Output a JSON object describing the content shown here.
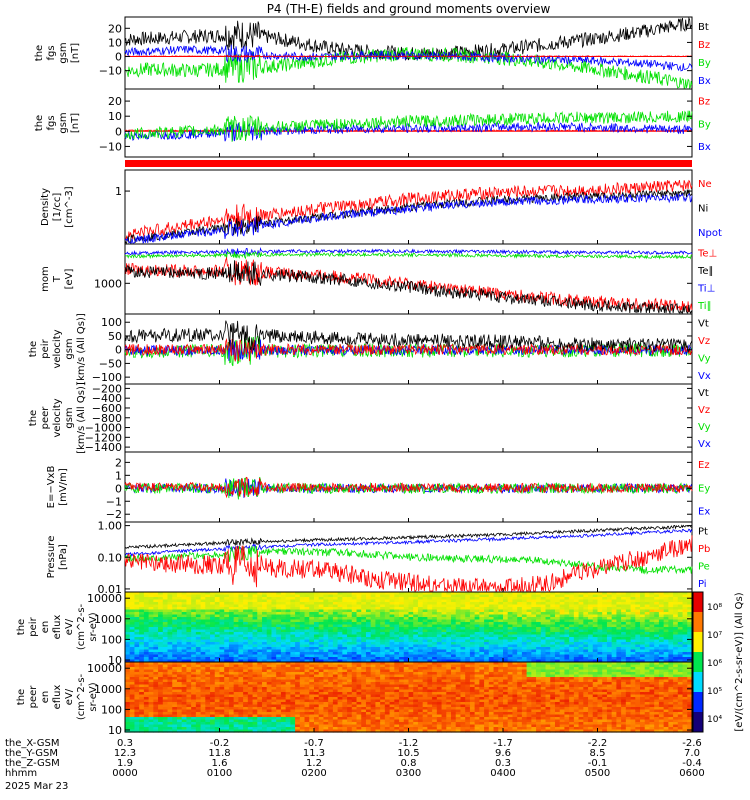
{
  "colors": {
    "black": "#000000",
    "red": "#ff0000",
    "green": "#00e000",
    "blue": "#0000ff",
    "bg": "#ffffff"
  },
  "chart_data": [
    {
      "type": "line",
      "id": "p1",
      "title": "P4 (TH-E) fields and ground moments overview",
      "ylabel_lines": [
        "the",
        "fgs",
        "gsm",
        "[nT]"
      ],
      "yticks": [
        {
          "v": 20,
          "t": "20"
        },
        {
          "v": 10,
          "t": "10"
        },
        {
          "v": 0,
          "t": "0"
        },
        {
          "v": -10,
          "t": "−10"
        }
      ],
      "ylim": [
        -23,
        28
      ],
      "ref_line": 0,
      "legend": [
        {
          "t": "Bt",
          "c": "black"
        },
        {
          "t": "Bz",
          "c": "red"
        },
        {
          "t": "By",
          "c": "green"
        },
        {
          "t": "Bx",
          "c": "blue"
        }
      ],
      "series": [
        {
          "name": "Bt",
          "color": "black",
          "x": [
            0,
            20,
            40,
            60,
            70,
            90,
            110,
            130,
            150,
            180,
            210,
            240,
            270,
            300,
            330,
            360
          ],
          "y": [
            12,
            13,
            14,
            15,
            16,
            14,
            10,
            6,
            4,
            2,
            3,
            5,
            9,
            13,
            18,
            24
          ],
          "noise": 5
        },
        {
          "name": "By",
          "color": "green",
          "x": [
            0,
            20,
            40,
            60,
            70,
            90,
            110,
            130,
            150,
            180,
            210,
            240,
            270,
            300,
            330,
            360
          ],
          "y": [
            -10,
            -9,
            -10,
            -9,
            -8,
            -7,
            -5,
            -2,
            0,
            2,
            1,
            -1,
            -5,
            -9,
            -14,
            -20
          ],
          "noise": 5
        },
        {
          "name": "Bx",
          "color": "blue",
          "x": [
            0,
            20,
            40,
            60,
            70,
            90,
            110,
            130,
            150,
            180,
            210,
            240,
            270,
            300,
            330,
            360
          ],
          "y": [
            3,
            4,
            5,
            4,
            2,
            1,
            0,
            0,
            1,
            1,
            0,
            -1,
            -2,
            -3,
            -5,
            -8
          ],
          "noise": 3
        },
        {
          "name": "Bz",
          "color": "red",
          "x": [
            0,
            360
          ],
          "y": [
            0.2,
            0.2
          ],
          "noise": 0.3
        }
      ]
    },
    {
      "type": "line",
      "id": "p2",
      "ylabel_lines": [
        "the",
        "fgs",
        "gsm",
        "[nT]"
      ],
      "yticks": [
        {
          "v": 20,
          "t": "20"
        },
        {
          "v": 10,
          "t": "10"
        },
        {
          "v": 0,
          "t": "0"
        },
        {
          "v": -10,
          "t": "−10"
        }
      ],
      "ylim": [
        -17,
        28
      ],
      "ref_line": 0,
      "legend": [
        {
          "t": "Bz",
          "c": "red"
        },
        {
          "t": "By",
          "c": "green"
        },
        {
          "t": "Bx",
          "c": "blue"
        }
      ],
      "series": [
        {
          "name": "Bz",
          "color": "red",
          "x": [
            0,
            360
          ],
          "y": [
            0.5,
            0.5
          ],
          "noise": 0.4
        },
        {
          "name": "Bx",
          "color": "blue",
          "x": [
            0,
            40,
            80,
            120,
            160,
            200,
            240,
            280,
            320,
            360
          ],
          "y": [
            -3,
            -2,
            0,
            1,
            2,
            2,
            3,
            3,
            2,
            1
          ],
          "noise": 3
        },
        {
          "name": "By",
          "color": "green",
          "x": [
            0,
            40,
            80,
            120,
            160,
            200,
            240,
            280,
            320,
            360
          ],
          "y": [
            -2,
            0,
            2,
            4,
            6,
            7,
            8,
            9,
            9,
            10
          ],
          "noise": 4
        }
      ]
    },
    {
      "type": "line",
      "id": "p3",
      "ylabel_lines": [
        "Density",
        "[1/cc]",
        "[cm^-3]"
      ],
      "scale": "log",
      "yticks": [
        {
          "v": 1,
          "t": "1"
        }
      ],
      "ylim": [
        0.1,
        2.5
      ],
      "legend": [
        {
          "t": "Ne",
          "c": "red"
        },
        {
          "t": "Ni",
          "c": "black"
        },
        {
          "t": "Npot",
          "c": "blue"
        }
      ],
      "series": [
        {
          "name": "Ne",
          "color": "red",
          "x": [
            0,
            30,
            60,
            90,
            120,
            150,
            180,
            210,
            240,
            270,
            300,
            330,
            360
          ],
          "y": [
            0.15,
            0.2,
            0.28,
            0.35,
            0.45,
            0.55,
            0.7,
            0.85,
            0.95,
            1.0,
            1.05,
            1.15,
            1.3
          ],
          "noise": 0.12
        },
        {
          "name": "Ni",
          "color": "black",
          "x": [
            0,
            30,
            60,
            90,
            120,
            150,
            180,
            210,
            240,
            270,
            300,
            330,
            360
          ],
          "y": [
            0.12,
            0.15,
            0.2,
            0.25,
            0.32,
            0.4,
            0.5,
            0.6,
            0.68,
            0.75,
            0.8,
            0.85,
            0.9
          ],
          "noise": 0.08
        },
        {
          "name": "Npot",
          "color": "blue",
          "x": [
            0,
            30,
            60,
            90,
            120,
            150,
            180,
            210,
            240,
            270,
            300,
            330,
            360
          ],
          "y": [
            0.11,
            0.14,
            0.18,
            0.23,
            0.3,
            0.38,
            0.45,
            0.55,
            0.62,
            0.66,
            0.7,
            0.73,
            0.75
          ],
          "noise": 0.08
        }
      ]
    },
    {
      "type": "line",
      "id": "p4",
      "ylabel_lines": [
        "mom",
        "T",
        "[eV]"
      ],
      "scale": "log",
      "yticks": [
        {
          "v": 1000,
          "t": "1000"
        }
      ],
      "ylim": [
        180,
        9000
      ],
      "legend": [
        {
          "t": "Te⊥",
          "c": "red"
        },
        {
          "t": "Te∥",
          "c": "black"
        },
        {
          "t": "Ti⊥",
          "c": "blue"
        },
        {
          "t": "Ti∥",
          "c": "green"
        }
      ],
      "series": [
        {
          "name": "Ti⊥",
          "color": "blue",
          "x": [
            0,
            60,
            120,
            180,
            240,
            300,
            360
          ],
          "y": [
            5400,
            5800,
            6000,
            6000,
            5800,
            5600,
            5500
          ],
          "noise": 0.04
        },
        {
          "name": "Ti∥",
          "color": "green",
          "x": [
            0,
            60,
            120,
            180,
            240,
            300,
            360
          ],
          "y": [
            4500,
            4800,
            5000,
            4900,
            4700,
            4500,
            4400
          ],
          "noise": 0.04
        },
        {
          "name": "Te⊥",
          "color": "red",
          "x": [
            0,
            40,
            80,
            120,
            160,
            200,
            240,
            280,
            320,
            360
          ],
          "y": [
            2200,
            2000,
            1900,
            1600,
            1200,
            800,
            550,
            400,
            320,
            280
          ],
          "noise": 0.15
        },
        {
          "name": "Te∥",
          "color": "black",
          "x": [
            0,
            40,
            80,
            120,
            160,
            200,
            240,
            280,
            320,
            360
          ],
          "y": [
            1900,
            1800,
            1700,
            1400,
            1000,
            650,
            450,
            330,
            260,
            220
          ],
          "noise": 0.15
        }
      ]
    },
    {
      "type": "line",
      "id": "p5",
      "ylabel_lines": [
        "the",
        "peir",
        "velocity",
        "gsm",
        "[km/s (All Qs)]"
      ],
      "yticks": [
        {
          "v": 100,
          "t": "100"
        },
        {
          "v": 50,
          "t": "50"
        },
        {
          "v": 0,
          "t": "0"
        },
        {
          "v": -50,
          "t": "−50"
        },
        {
          "v": -100,
          "t": "−100"
        }
      ],
      "ylim": [
        -125,
        130
      ],
      "legend": [
        {
          "t": "Vt",
          "c": "black"
        },
        {
          "t": "Vz",
          "c": "red"
        },
        {
          "t": "Vy",
          "c": "green"
        },
        {
          "t": "Vx",
          "c": "blue"
        }
      ],
      "series": [
        {
          "name": "Vy",
          "color": "green",
          "x": [
            0,
            120,
            240,
            360
          ],
          "y": [
            -5,
            -4,
            -3,
            -2
          ],
          "noise": 25
        },
        {
          "name": "Vx",
          "color": "blue",
          "x": [
            0,
            120,
            240,
            360
          ],
          "y": [
            -3,
            -2,
            -1,
            -1
          ],
          "noise": 18
        },
        {
          "name": "Vz",
          "color": "red",
          "x": [
            0,
            120,
            240,
            360
          ],
          "y": [
            0,
            1,
            1,
            0
          ],
          "noise": 20
        },
        {
          "name": "Vt",
          "color": "black",
          "x": [
            0,
            60,
            120,
            180,
            240,
            300,
            360
          ],
          "y": [
            50,
            55,
            45,
            35,
            30,
            20,
            15
          ],
          "noise": 25
        }
      ]
    },
    {
      "type": "line",
      "id": "p6",
      "ylabel_lines": [
        "the",
        "peer",
        "velocity",
        "gsm",
        "[km/s (All Qs)]"
      ],
      "yticks": [
        {
          "v": -200,
          "t": "−200"
        },
        {
          "v": -400,
          "t": "−400"
        },
        {
          "v": -600,
          "t": "−600"
        },
        {
          "v": -800,
          "t": "−800"
        },
        {
          "v": -1000,
          "t": "−1000"
        },
        {
          "v": -1200,
          "t": "−1200"
        },
        {
          "v": -1400,
          "t": "−1400"
        }
      ],
      "ylim": [
        -1500,
        -110
      ],
      "legend": [
        {
          "t": "Vt",
          "c": "black"
        },
        {
          "t": "Vz",
          "c": "red"
        },
        {
          "t": "Vy",
          "c": "green"
        },
        {
          "t": "Vx",
          "c": "blue"
        }
      ],
      "series": []
    },
    {
      "type": "line",
      "id": "p7",
      "ylabel_lines": [
        "E=−VxB",
        "[mV/m]"
      ],
      "yticks": [
        {
          "v": 2,
          "t": "2"
        },
        {
          "v": 1,
          "t": "1"
        },
        {
          "v": 0,
          "t": "0"
        },
        {
          "v": -1,
          "t": "−1"
        },
        {
          "v": -2,
          "t": "−2"
        }
      ],
      "ylim": [
        -2.6,
        2.8
      ],
      "legend": [
        {
          "t": "Ez",
          "c": "red"
        },
        {
          "t": "Ey",
          "c": "green"
        },
        {
          "t": "Ex",
          "c": "blue"
        }
      ],
      "series": [
        {
          "name": "Ex",
          "color": "blue",
          "x": [
            0,
            360
          ],
          "y": [
            0,
            0
          ],
          "noise": 0.35
        },
        {
          "name": "Ey",
          "color": "green",
          "x": [
            0,
            360
          ],
          "y": [
            0,
            0
          ],
          "noise": 0.4
        },
        {
          "name": "Ez",
          "color": "red",
          "x": [
            0,
            360
          ],
          "y": [
            0.1,
            0
          ],
          "noise": 0.35
        }
      ]
    },
    {
      "type": "line",
      "id": "p8",
      "ylabel_lines": [
        "Pressure",
        "[nPa]"
      ],
      "scale": "log",
      "yticks": [
        {
          "v": 1,
          "t": "1.00"
        },
        {
          "v": 0.1,
          "t": "0.10"
        },
        {
          "v": 0.01,
          "t": "0.01"
        }
      ],
      "ylim": [
        0.008,
        1.3
      ],
      "legend": [
        {
          "t": "Pt",
          "c": "black"
        },
        {
          "t": "Pb",
          "c": "red"
        },
        {
          "t": "Pe",
          "c": "green"
        },
        {
          "t": "Pi",
          "c": "blue"
        }
      ],
      "series": [
        {
          "name": "Pt",
          "color": "black",
          "x": [
            0,
            60,
            120,
            180,
            240,
            300,
            360
          ],
          "y": [
            0.2,
            0.28,
            0.35,
            0.42,
            0.52,
            0.7,
            0.95
          ],
          "noise": 0.05
        },
        {
          "name": "Pi",
          "color": "blue",
          "x": [
            0,
            60,
            120,
            180,
            240,
            300,
            360
          ],
          "y": [
            0.12,
            0.18,
            0.25,
            0.3,
            0.38,
            0.5,
            0.7
          ],
          "noise": 0.05
        },
        {
          "name": "Pe",
          "color": "green",
          "x": [
            0,
            60,
            100,
            140,
            180,
            220,
            260,
            300,
            330,
            360
          ],
          "y": [
            0.09,
            0.12,
            0.15,
            0.14,
            0.1,
            0.09,
            0.08,
            0.05,
            0.04,
            0.04
          ],
          "noise": 0.12
        },
        {
          "name": "Pb",
          "color": "red",
          "x": [
            0,
            40,
            80,
            120,
            160,
            200,
            240,
            270,
            300,
            330,
            360
          ],
          "y": [
            0.08,
            0.06,
            0.05,
            0.04,
            0.02,
            0.012,
            0.01,
            0.015,
            0.04,
            0.1,
            0.25
          ],
          "noise": 0.3
        }
      ]
    },
    {
      "type": "heatmap",
      "id": "p9",
      "ylabel_lines": [
        "the",
        "peir",
        "en",
        "eflux",
        "eV/",
        "(cm^2-s-",
        "sr-eV)"
      ],
      "scale": "log",
      "yticks": [
        {
          "v": 10000,
          "t": "10000"
        },
        {
          "v": 1000,
          "t": "1000"
        },
        {
          "v": 100,
          "t": "100"
        },
        {
          "v": 10,
          "t": "10"
        }
      ],
      "ylim": [
        8,
        20000
      ],
      "colorscale": "rainbow",
      "note": "ion energy flux spectrogram: high values above ~1000 eV, low values below"
    },
    {
      "type": "heatmap",
      "id": "p10",
      "ylabel_lines": [
        "the",
        "peer",
        "en",
        "eflux",
        "eV/",
        "(cm^2-s-",
        "sr-eV)"
      ],
      "scale": "log",
      "yticks": [
        {
          "v": 10000,
          "t": "10000"
        },
        {
          "v": 1000,
          "t": "1000"
        },
        {
          "v": 100,
          "t": "100"
        },
        {
          "v": 10,
          "t": "10"
        }
      ],
      "ylim": [
        8,
        20000
      ],
      "colorscale": "rainbow",
      "note": "electron energy flux spectrogram: high flux across most energies"
    }
  ],
  "colorbar": {
    "ticks": [
      "10⁴",
      "10⁵",
      "10⁶",
      "10⁷",
      "10⁸"
    ],
    "label": "[eV/(cm^2-s-sr-eV)] (All Qs)"
  },
  "xaxis": {
    "xlim": [
      0,
      360
    ],
    "tick_values": [
      0,
      60,
      120,
      180,
      240,
      300,
      360
    ],
    "rows": [
      {
        "label": "the_X-GSM",
        "values": [
          "0.3",
          "-0.2",
          "-0.7",
          "-1.2",
          "-1.7",
          "-2.2",
          "-2.6"
        ]
      },
      {
        "label": "the_Y-GSM",
        "values": [
          "12.3",
          "11.8",
          "11.3",
          "10.5",
          "9.6",
          "8.5",
          "7.0"
        ]
      },
      {
        "label": "the_Z-GSM",
        "values": [
          "1.9",
          "1.6",
          "1.2",
          "0.8",
          "0.3",
          "-0.1",
          "-0.4"
        ]
      },
      {
        "label": "hhmm",
        "values": [
          "0000",
          "0100",
          "0200",
          "0300",
          "0400",
          "0500",
          "0600"
        ]
      }
    ],
    "date": "2025 Mar 23"
  }
}
